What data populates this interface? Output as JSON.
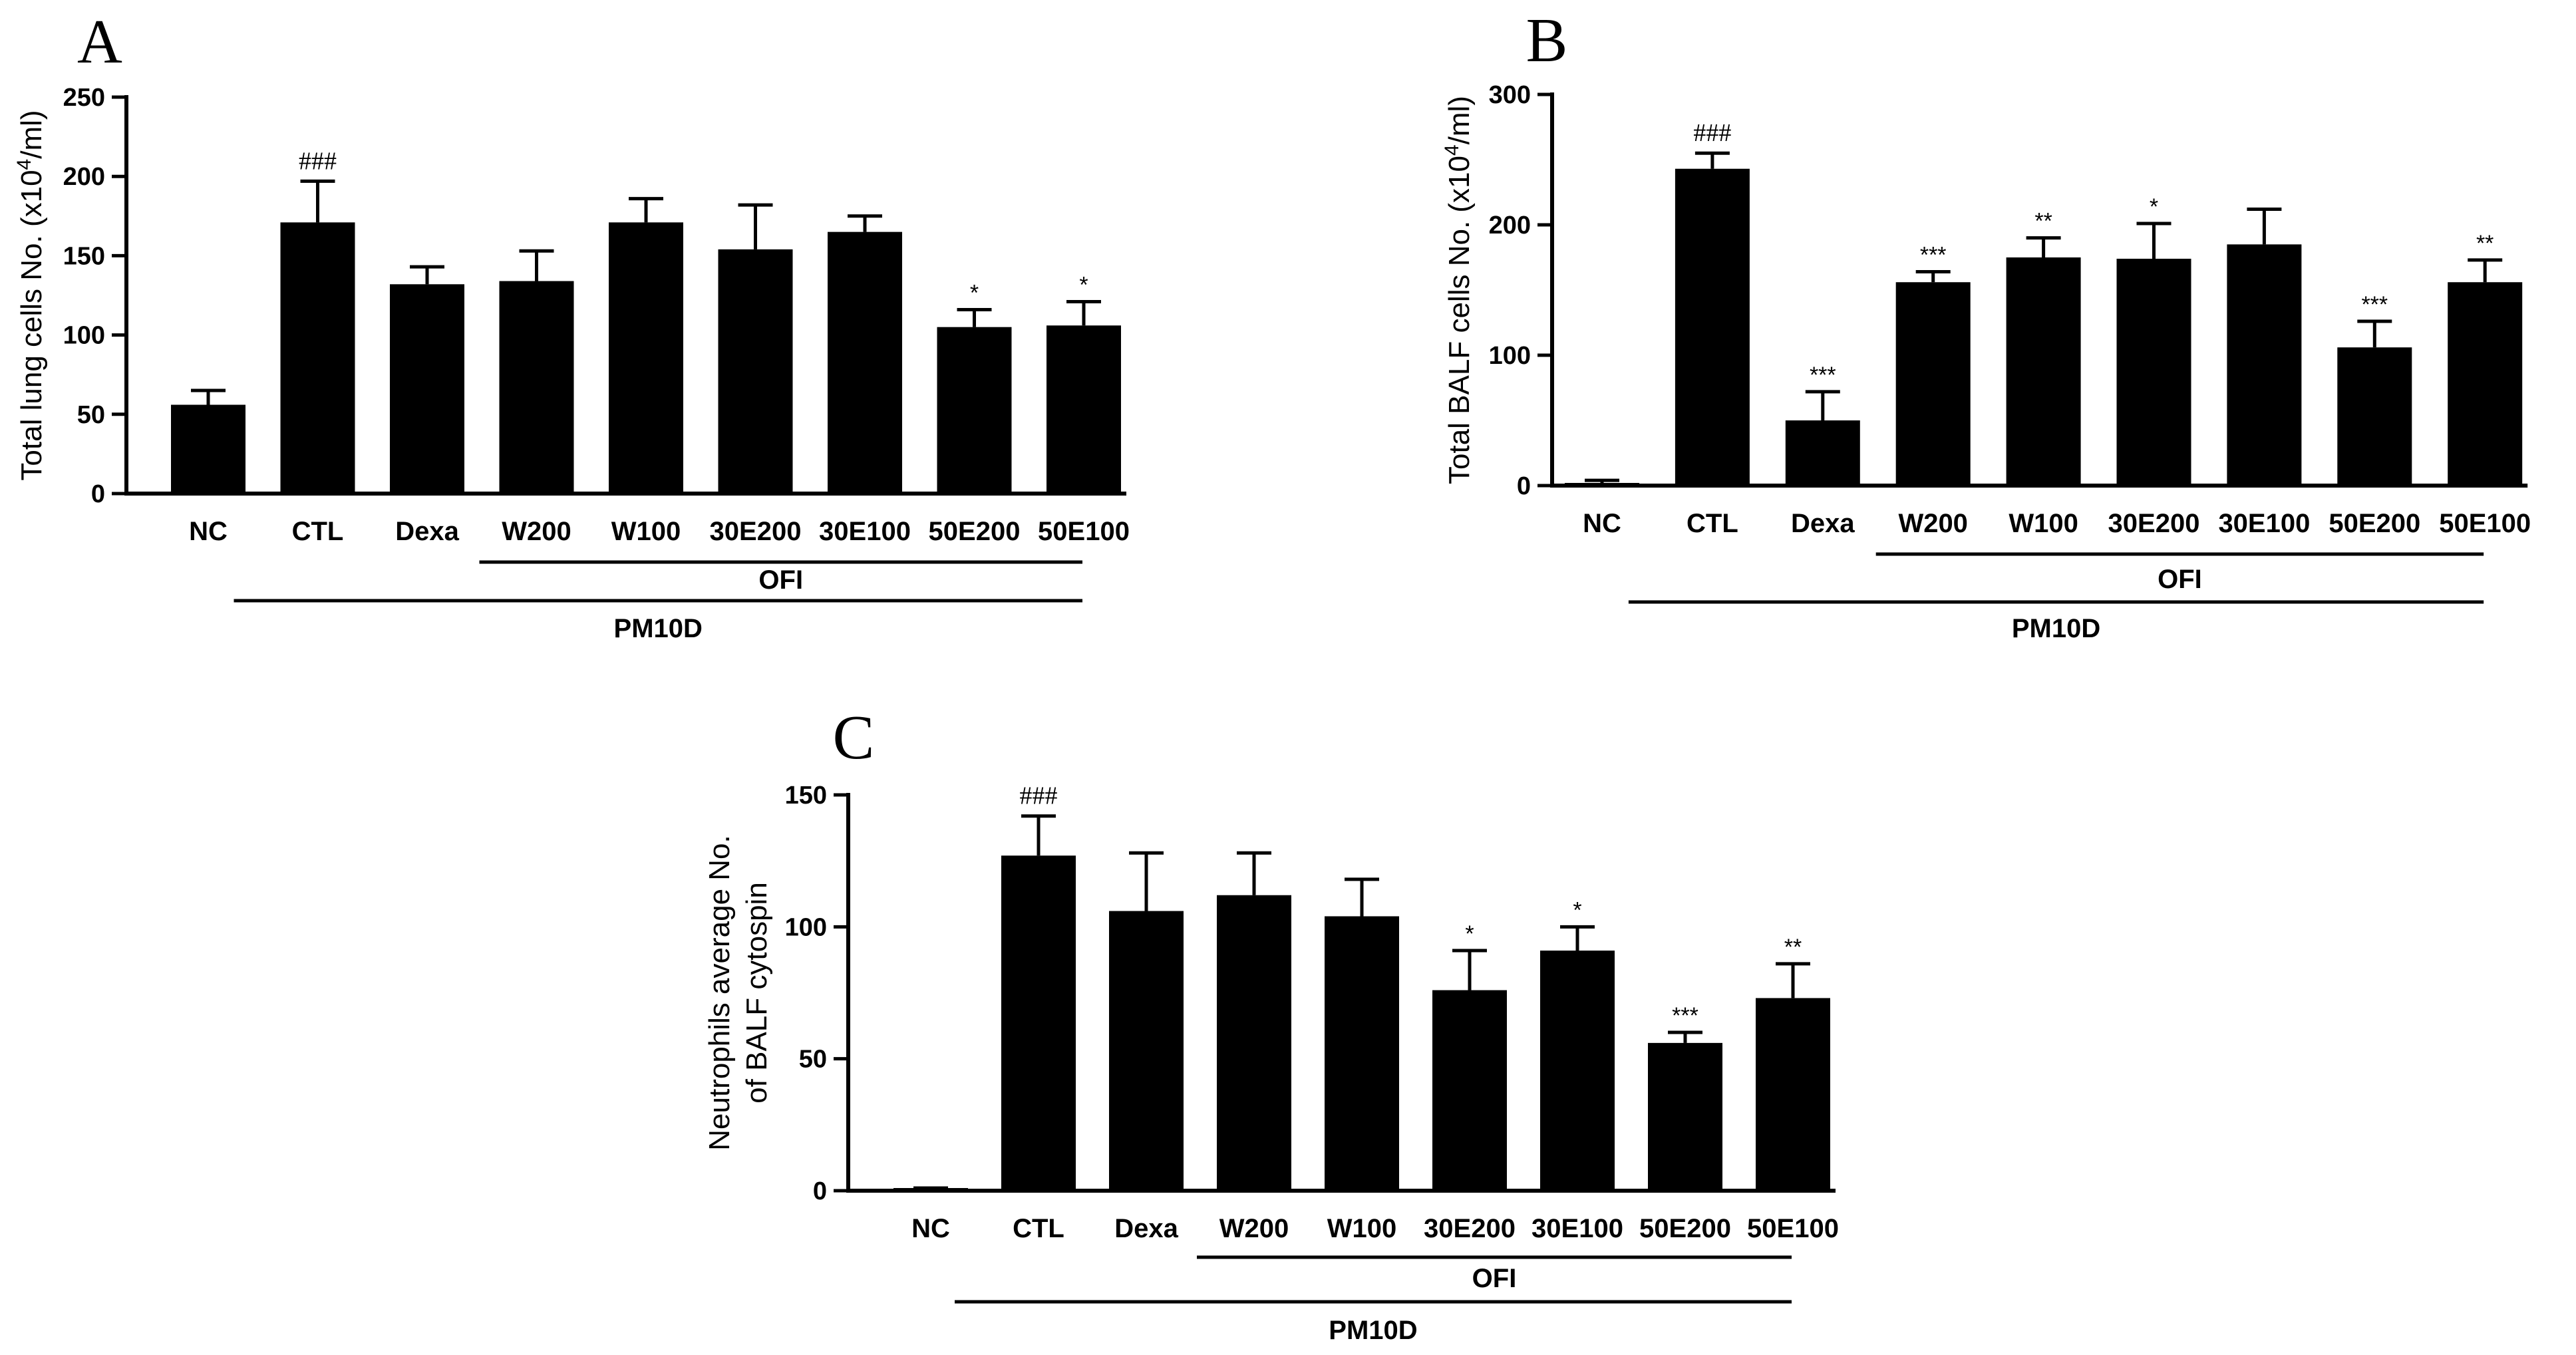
{
  "chart_data": [
    {
      "panel": "A",
      "type": "bar",
      "title": "",
      "xlabel": "",
      "ylabel_parts": [
        "Total lung cells No. (x10",
        "4",
        "/ml)"
      ],
      "ylim": [
        0,
        250
      ],
      "yticks": [
        0,
        50,
        100,
        150,
        200,
        250
      ],
      "grid": false,
      "categories": [
        "NC",
        "CTL",
        "Dexa",
        "W200",
        "W100",
        "30E200",
        "30E100",
        "50E200",
        "50E100"
      ],
      "values": [
        56,
        171,
        132,
        134,
        171,
        154,
        165,
        105,
        106
      ],
      "errors": [
        9,
        26,
        11,
        19,
        15,
        28,
        10,
        11,
        15
      ],
      "significance": [
        "",
        "###",
        "",
        "",
        "",
        "",
        "",
        "*",
        "*"
      ],
      "groups": [
        {
          "label": "OFI",
          "from": "W200",
          "to": "50E100"
        },
        {
          "label": "PM10D",
          "from": "CTL",
          "to": "50E100"
        }
      ]
    },
    {
      "panel": "B",
      "type": "bar",
      "title": "",
      "xlabel": "",
      "ylabel_parts": [
        "Total  BALF cells No. (x10",
        "4",
        "/ml)"
      ],
      "ylim": [
        0,
        300
      ],
      "yticks": [
        0,
        100,
        200,
        300
      ],
      "grid": false,
      "categories": [
        "NC",
        "CTL",
        "Dexa",
        "W200",
        "W100",
        "30E200",
        "30E100",
        "50E200",
        "50E100"
      ],
      "values": [
        2,
        243,
        50,
        156,
        175,
        174,
        185,
        106,
        156
      ],
      "errors": [
        2,
        12,
        22,
        8,
        15,
        27,
        27,
        20,
        17
      ],
      "significance": [
        "",
        "###",
        "***",
        "***",
        "**",
        "*",
        "",
        "***",
        "**"
      ],
      "groups": [
        {
          "label": "OFI",
          "from": "W200",
          "to": "50E100"
        },
        {
          "label": "PM10D",
          "from": "CTL",
          "to": "50E100"
        }
      ]
    },
    {
      "panel": "C",
      "type": "bar",
      "title": "",
      "xlabel": "",
      "ylabel_lines": [
        "Neutrophils average No.",
        "of BALF cytospin"
      ],
      "ylim": [
        0,
        150
      ],
      "yticks": [
        0,
        50,
        100,
        150
      ],
      "grid": false,
      "categories": [
        "NC",
        "CTL",
        "Dexa",
        "W200",
        "W100",
        "30E200",
        "30E100",
        "50E200",
        "50E100"
      ],
      "values": [
        0,
        127,
        106,
        112,
        104,
        76,
        91,
        56,
        73
      ],
      "errors": [
        1,
        15,
        22,
        16,
        14,
        15,
        9,
        4,
        13
      ],
      "significance": [
        "",
        "###",
        "",
        "",
        "",
        "*",
        "*",
        "***",
        "**"
      ],
      "groups": [
        {
          "label": "OFI",
          "from": "W200",
          "to": "50E100"
        },
        {
          "label": "PM10D",
          "from": "CTL",
          "to": "50E100"
        }
      ]
    }
  ]
}
